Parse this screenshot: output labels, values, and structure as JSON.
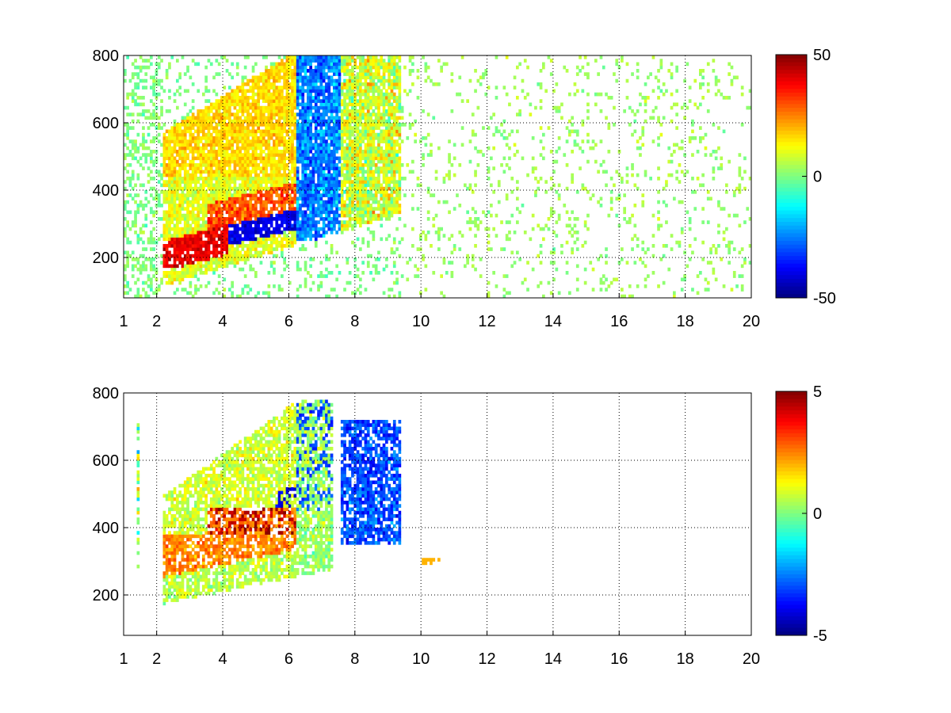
{
  "chart_data": [
    {
      "type": "heatmap",
      "title": "",
      "xlabel": "",
      "ylabel": "",
      "xlim": [
        1,
        20
      ],
      "ylim": [
        80,
        800
      ],
      "x_ticks": [
        1,
        2,
        4,
        6,
        8,
        10,
        12,
        14,
        16,
        18,
        20
      ],
      "x_tick_labels": [
        "1",
        "2",
        "4",
        "6",
        "8",
        "10",
        "12",
        "14",
        "16",
        "18",
        "20"
      ],
      "y_ticks": [
        200,
        400,
        600,
        800
      ],
      "y_tick_labels": [
        "200",
        "400",
        "600",
        "800"
      ],
      "grid": true,
      "colormap": "jet",
      "clim": [
        -50,
        50
      ],
      "colorbar_ticks": [
        50,
        0,
        -50
      ],
      "colorbar_tick_labels": [
        "50",
        "0",
        "-50"
      ],
      "features": [
        {
          "description": "strong positive band",
          "x_range": [
            2.4,
            4.0
          ],
          "y_range": [
            200,
            280
          ],
          "value": 45
        },
        {
          "description": "strong negative band",
          "x_range": [
            4.0,
            6.0
          ],
          "y_range": [
            250,
            300
          ],
          "value": -42
        },
        {
          "description": "positive upper branch",
          "x_range": [
            3.0,
            6.0
          ],
          "y_range": [
            450,
            700
          ],
          "value": 18
        },
        {
          "description": "negative region",
          "x_range": [
            6.0,
            7.5
          ],
          "y_range": [
            250,
            700
          ],
          "value": -30
        },
        {
          "description": "mixed region",
          "x_range": [
            7.5,
            9.4
          ],
          "y_range": [
            350,
            800
          ],
          "value": 10
        },
        {
          "description": "sparse noise",
          "x_range": [
            9.4,
            20
          ],
          "y_range": [
            80,
            800
          ],
          "value": 2
        }
      ]
    },
    {
      "type": "heatmap",
      "title": "",
      "xlabel": "",
      "ylabel": "",
      "xlim": [
        1,
        20
      ],
      "ylim": [
        80,
        800
      ],
      "x_ticks": [
        1,
        2,
        4,
        6,
        8,
        10,
        12,
        14,
        16,
        18,
        20
      ],
      "x_tick_labels": [
        "1",
        "2",
        "4",
        "6",
        "8",
        "10",
        "12",
        "14",
        "16",
        "18",
        "20"
      ],
      "y_ticks": [
        200,
        400,
        600,
        800
      ],
      "y_tick_labels": [
        "200",
        "400",
        "600",
        "800"
      ],
      "grid": true,
      "colormap": "jet",
      "clim": [
        -5,
        5
      ],
      "colorbar_ticks": [
        5,
        0,
        -5
      ],
      "colorbar_tick_labels": [
        "5",
        "0",
        "-5"
      ],
      "features": [
        {
          "description": "positive lower band",
          "x_range": [
            2.0,
            6.0
          ],
          "y_range": [
            200,
            380
          ],
          "value": 2.5
        },
        {
          "description": "strong positive streaks",
          "x_range": [
            3.5,
            6.0
          ],
          "y_range": [
            380,
            450
          ],
          "value": 4.5
        },
        {
          "description": "near-zero upper branch",
          "x_range": [
            3.0,
            6.0
          ],
          "y_range": [
            450,
            750
          ],
          "value": 0.5
        },
        {
          "description": "negative streaks",
          "x_range": [
            5.5,
            6.0
          ],
          "y_range": [
            400,
            500
          ],
          "value": -4
        },
        {
          "description": "negative patches",
          "x_range": [
            6.5,
            9.0
          ],
          "y_range": [
            350,
            700
          ],
          "value": -3
        },
        {
          "description": "near-zero band",
          "x_range": [
            6.0,
            7.2
          ],
          "y_range": [
            230,
            780
          ],
          "value": 0.3
        }
      ]
    }
  ]
}
